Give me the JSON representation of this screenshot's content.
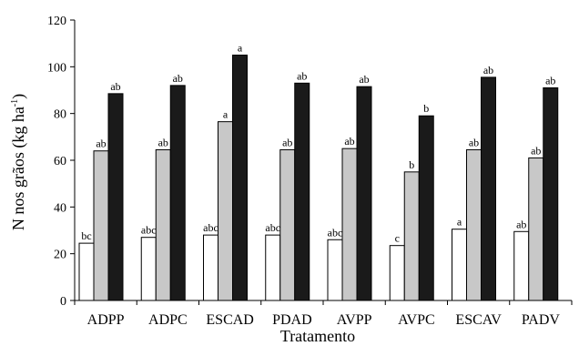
{
  "chart_data": {
    "type": "bar",
    "xlabel": "Tratamento",
    "ylabel": {
      "main": "N nos grãos (kg ha",
      "sup": "-1",
      "close": ")"
    },
    "ylim": [
      0,
      120
    ],
    "yticks": [
      0,
      20,
      40,
      60,
      80,
      100,
      120
    ],
    "ytick_labels": [
      "0",
      "20",
      "40",
      "60",
      "80",
      "100",
      "120"
    ],
    "grid": false,
    "legend": "none",
    "categories": [
      "ADPP",
      "ADPC",
      "ESCAD",
      "PDAD",
      "AVPP",
      "AVPC",
      "ESCAV",
      "PADV"
    ],
    "series": [
      {
        "color": "#ffffff",
        "values": [
          24.5,
          27,
          28,
          28,
          26,
          23.5,
          30.5,
          29.5
        ],
        "letters": [
          "bc",
          "abc",
          "abc",
          "abc",
          "abc",
          "c",
          "a",
          "ab"
        ]
      },
      {
        "color": "#c8c8c8",
        "values": [
          64,
          64.5,
          76.5,
          64.5,
          65,
          55,
          64.5,
          61
        ],
        "letters": [
          "ab",
          "ab",
          "a",
          "ab",
          "ab",
          "b",
          "ab",
          "ab"
        ]
      },
      {
        "color": "#1a1a1a",
        "values": [
          88.5,
          92,
          105,
          93,
          91.5,
          79,
          95.5,
          91
        ],
        "letters": [
          "ab",
          "ab",
          "a",
          "ab",
          "ab",
          "b",
          "ab",
          "ab"
        ]
      }
    ]
  }
}
